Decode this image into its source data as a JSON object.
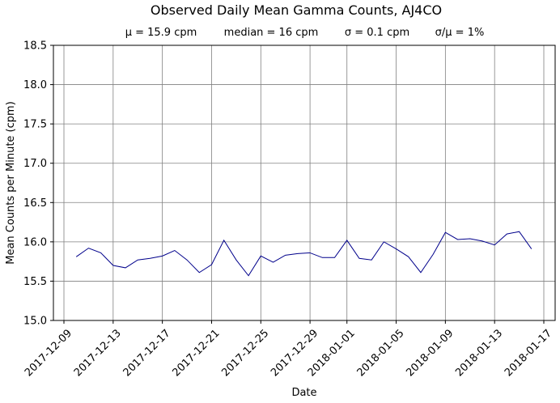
{
  "chart_data": {
    "type": "line",
    "title": "Observed Daily Mean Gamma Counts, AJ4CO",
    "stats": {
      "mean": "μ = 15.9 cpm",
      "median": "median = 16 cpm",
      "sigma": "σ = 0.1 cpm",
      "cv": "σ/μ = 1%"
    },
    "xlabel": "Date",
    "ylabel": "Mean Counts per Minute (cpm)",
    "xlim": [
      "2017-12-09",
      "2018-01-18"
    ],
    "ylim": [
      15.0,
      18.5
    ],
    "x_ticks": [
      "2017-12-09",
      "2017-12-13",
      "2017-12-17",
      "2017-12-21",
      "2017-12-25",
      "2017-12-29",
      "2018-01-01",
      "2018-01-05",
      "2018-01-09",
      "2018-01-13",
      "2018-01-17"
    ],
    "y_ticks": [
      "15.0",
      "15.5",
      "16.0",
      "16.5",
      "17.0",
      "17.5",
      "18.0",
      "18.5"
    ],
    "grid": true,
    "line_color": "#00008b",
    "series": [
      {
        "x": [
          "2017-12-10",
          "2017-12-11",
          "2017-12-12",
          "2017-12-13",
          "2017-12-14",
          "2017-12-15",
          "2017-12-16",
          "2017-12-17",
          "2017-12-18",
          "2017-12-19",
          "2017-12-20",
          "2017-12-21",
          "2017-12-22",
          "2017-12-23",
          "2017-12-24",
          "2017-12-25",
          "2017-12-26",
          "2017-12-27",
          "2017-12-28",
          "2017-12-29",
          "2017-12-30",
          "2017-12-31",
          "2018-01-01",
          "2018-01-02",
          "2018-01-03",
          "2018-01-04",
          "2018-01-05",
          "2018-01-06",
          "2018-01-07",
          "2018-01-08",
          "2018-01-09",
          "2018-01-10",
          "2018-01-11",
          "2018-01-12",
          "2018-01-13",
          "2018-01-14",
          "2018-01-15",
          "2018-01-16"
        ],
        "values": [
          15.81,
          15.92,
          15.86,
          15.7,
          15.67,
          15.77,
          15.79,
          15.82,
          15.89,
          15.77,
          15.61,
          15.71,
          16.02,
          15.77,
          15.57,
          15.82,
          15.74,
          15.83,
          15.85,
          15.86,
          15.8,
          15.8,
          16.02,
          15.79,
          15.77,
          16.0,
          15.91,
          15.81,
          15.61,
          15.84,
          16.12,
          16.03,
          16.04,
          16.01,
          15.96,
          16.1,
          16.13,
          15.91
        ]
      }
    ]
  }
}
